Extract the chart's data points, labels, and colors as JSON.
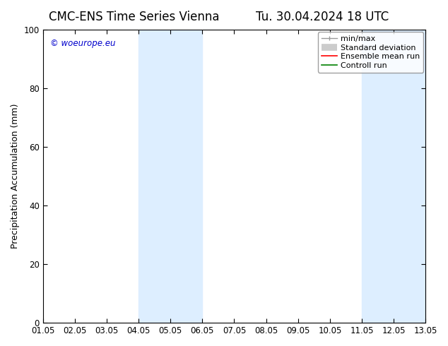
{
  "title_left": "CMC-ENS Time Series Vienna",
  "title_right": "Tu. 30.04.2024 18 UTC",
  "ylabel": "Precipitation Accumulation (mm)",
  "ylim": [
    0,
    100
  ],
  "yticks": [
    0,
    20,
    40,
    60,
    80,
    100
  ],
  "xlabel_ticks": [
    "01.05",
    "02.05",
    "03.05",
    "04.05",
    "05.05",
    "06.05",
    "07.05",
    "08.05",
    "09.05",
    "10.05",
    "11.05",
    "12.05",
    "13.05"
  ],
  "shaded_regions": [
    {
      "xstart": 3.0,
      "xend": 5.0
    },
    {
      "xstart": 10.0,
      "xend": 12.0
    }
  ],
  "shaded_color": "#ddeeff",
  "watermark": "© woeurope.eu",
  "watermark_color": "#0000cc",
  "background_color": "#ffffff",
  "title_fontsize": 12,
  "tick_fontsize": 8.5,
  "label_fontsize": 9,
  "legend_fontsize": 8
}
